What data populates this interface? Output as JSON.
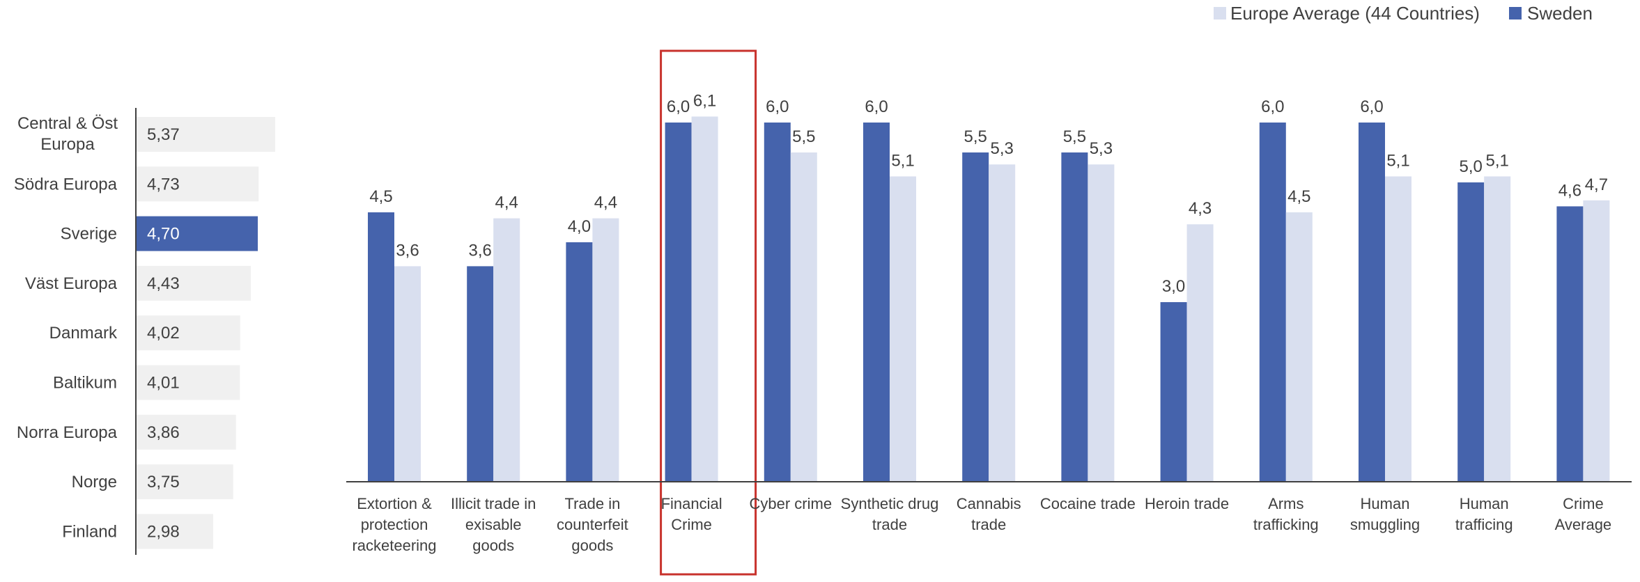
{
  "colors": {
    "sweden": "#4563AC",
    "europe": "#D9DFEF",
    "left_bar": "#F0F0F0",
    "highlight_bar": "#4563AC",
    "highlight_border": "#C8322C",
    "axis": "#404040",
    "text": "#404040"
  },
  "chart_data": [
    {
      "type": "bar",
      "orientation": "horizontal",
      "categories": [
        "Central & Öst Europa",
        "Södra Europa",
        "Sverige",
        "Väst Europa",
        "Danmark",
        "Baltikum",
        "Norra Europa",
        "Norge",
        "Finland"
      ],
      "values": [
        5.37,
        4.73,
        4.7,
        4.43,
        4.02,
        4.01,
        3.86,
        3.75,
        2.98
      ],
      "value_labels": [
        "5,37",
        "4,73",
        "4,70",
        "4,43",
        "4,02",
        "4,01",
        "3,86",
        "3,75",
        "2,98"
      ],
      "highlight": "Sverige",
      "xlim": [
        0,
        6.5
      ]
    },
    {
      "type": "bar",
      "categories": [
        [
          "Extortion &",
          "protection",
          "racketeering"
        ],
        [
          "Illicit trade in",
          "exisable",
          "goods"
        ],
        [
          "Trade in",
          "counterfeit",
          "goods"
        ],
        [
          "Financial",
          "Crime"
        ],
        [
          "Cyber crime"
        ],
        [
          "Synthetic drug",
          "trade"
        ],
        [
          "Cannabis",
          "trade"
        ],
        [
          "Cocaine trade"
        ],
        [
          "Heroin trade"
        ],
        [
          "Arms",
          "trafficking"
        ],
        [
          "Human",
          "smuggling"
        ],
        [
          "Human",
          "trafficing"
        ],
        [
          "Crime",
          "Average"
        ]
      ],
      "series": [
        {
          "name": "Sweden",
          "values": [
            4.5,
            3.6,
            4.0,
            6.0,
            6.0,
            6.0,
            5.5,
            5.5,
            3.0,
            6.0,
            6.0,
            5.0,
            4.6
          ],
          "labels": [
            "4,5",
            "3,6",
            "4,0",
            "6,0",
            "6,0",
            "6,0",
            "5,5",
            "5,5",
            "3,0",
            "6,0",
            "6,0",
            "5,0",
            "4,6"
          ]
        },
        {
          "name": "Europe Average (44 Countries)",
          "values": [
            3.6,
            4.4,
            4.4,
            6.1,
            5.5,
            5.1,
            5.3,
            5.3,
            4.3,
            4.5,
            5.1,
            5.1,
            4.7
          ],
          "labels": [
            "3,6",
            "4,4",
            "4,4",
            "6,1",
            "5,5",
            "5,1",
            "5,3",
            "5,3",
            "4,3",
            "4,5",
            "5,1",
            "5,1",
            "4,7"
          ]
        }
      ],
      "highlight_category_index": 3,
      "ylim": [
        0,
        7
      ],
      "legend": {
        "position": "top-right",
        "entries": [
          "Europe Average (44 Countries)",
          "Sweden"
        ]
      }
    }
  ]
}
